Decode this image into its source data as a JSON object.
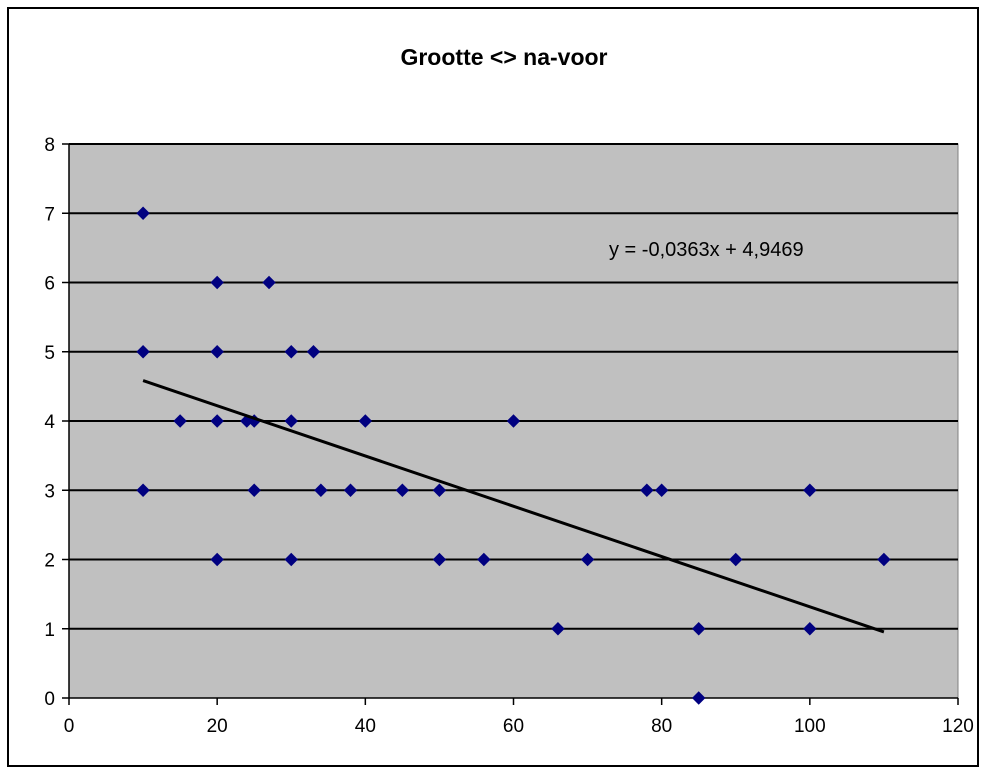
{
  "chart_data": {
    "type": "scatter",
    "title": "Grootte <> na-voor",
    "xlabel": "",
    "ylabel": "",
    "xlim": [
      0,
      120
    ],
    "ylim": [
      0,
      8
    ],
    "x_ticks": [
      0,
      20,
      40,
      60,
      80,
      100,
      120
    ],
    "y_ticks": [
      0,
      1,
      2,
      3,
      4,
      5,
      6,
      7,
      8
    ],
    "x_tick_labels": [
      "0",
      "20",
      "40",
      "60",
      "80",
      "100",
      "120"
    ],
    "y_tick_labels": [
      "0",
      "1",
      "2",
      "3",
      "4",
      "5",
      "6",
      "7",
      "8"
    ],
    "horizontal_grid": true,
    "legend": "none",
    "plot_background": "#c0c0c0",
    "marker_color": "#000080",
    "series": [
      {
        "points": [
          [
            10,
            7
          ],
          [
            10,
            5
          ],
          [
            10,
            3
          ],
          [
            15,
            4
          ],
          [
            20,
            6
          ],
          [
            20,
            5
          ],
          [
            20,
            4
          ],
          [
            20,
            2
          ],
          [
            24,
            4
          ],
          [
            25,
            4
          ],
          [
            25,
            3
          ],
          [
            27,
            6
          ],
          [
            30,
            5
          ],
          [
            30,
            4
          ],
          [
            30,
            2
          ],
          [
            33,
            5
          ],
          [
            34,
            3
          ],
          [
            38,
            3
          ],
          [
            40,
            4
          ],
          [
            45,
            3
          ],
          [
            50,
            3
          ],
          [
            50,
            2
          ],
          [
            56,
            2
          ],
          [
            60,
            4
          ],
          [
            66,
            1
          ],
          [
            70,
            2
          ],
          [
            78,
            3
          ],
          [
            80,
            3
          ],
          [
            85,
            1
          ],
          [
            85,
            0
          ],
          [
            90,
            2
          ],
          [
            100,
            3
          ],
          [
            100,
            1
          ],
          [
            110,
            2
          ]
        ]
      }
    ],
    "trendline": {
      "type": "linear",
      "slope": -0.0363,
      "intercept": 4.9469,
      "x_range": [
        10,
        110
      ],
      "color": "#000000",
      "equation_label": "y = -0,0363x + 4,9469"
    }
  }
}
